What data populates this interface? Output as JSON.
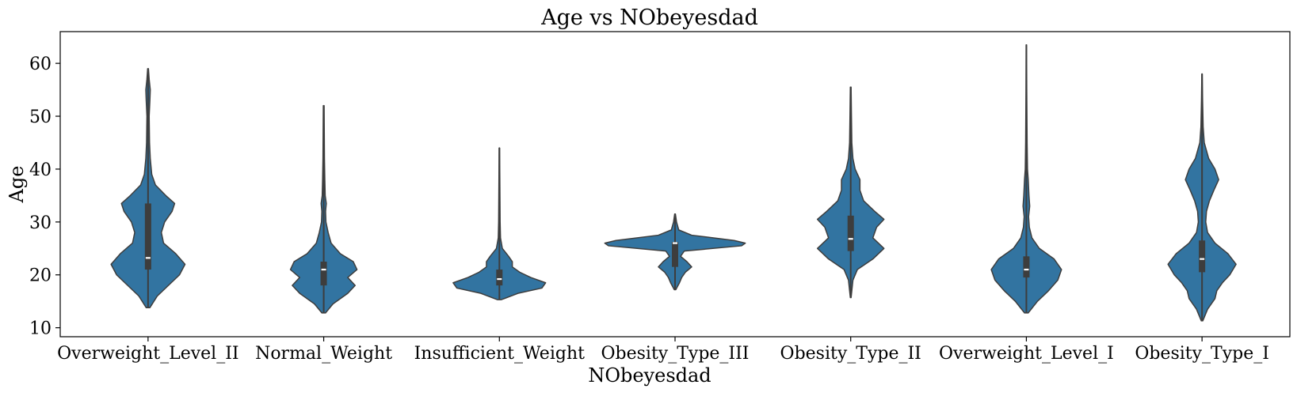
{
  "chart_data": {
    "type": "violin",
    "title": "Age vs NObeyesdad",
    "xlabel": "NObeyesdad",
    "ylabel": "Age",
    "ylim": [
      8.3,
      66
    ],
    "yticks": [
      10,
      20,
      30,
      40,
      50,
      60
    ],
    "grid": false,
    "legend": "none",
    "color": "#3274a1",
    "edge_color": "#3d3d3d",
    "categories": [
      "Overweight_Level_II",
      "Normal_Weight",
      "Insufficient_Weight",
      "Obesity_Type_III",
      "Obesity_Type_II",
      "Overweight_Level_I",
      "Obesity_Type_I"
    ],
    "series": [
      {
        "category": "Overweight_Level_II",
        "min": 13.8,
        "max": 59,
        "q1": 21,
        "median": 23.2,
        "q3": 33.5,
        "density": [
          [
            13.8,
            0.05
          ],
          [
            16,
            0.25
          ],
          [
            18,
            0.55
          ],
          [
            20,
            0.85
          ],
          [
            22,
            1.0
          ],
          [
            24,
            0.75
          ],
          [
            26,
            0.42
          ],
          [
            28,
            0.36
          ],
          [
            30,
            0.45
          ],
          [
            32,
            0.65
          ],
          [
            33.5,
            0.72
          ],
          [
            35,
            0.48
          ],
          [
            37,
            0.2
          ],
          [
            39,
            0.1
          ],
          [
            42,
            0.06
          ],
          [
            45,
            0.04
          ],
          [
            50,
            0.03
          ],
          [
            53,
            0.05
          ],
          [
            55,
            0.06
          ],
          [
            57,
            0.03
          ],
          [
            59,
            0.01
          ]
        ]
      },
      {
        "category": "Normal_Weight",
        "min": 12.8,
        "max": 52,
        "q1": 18,
        "median": 21,
        "q3": 22.5,
        "density": [
          [
            12.8,
            0.05
          ],
          [
            14.5,
            0.25
          ],
          [
            16.5,
            0.65
          ],
          [
            18,
            0.85
          ],
          [
            19.5,
            0.65
          ],
          [
            21,
            0.9
          ],
          [
            22.5,
            0.8
          ],
          [
            24,
            0.45
          ],
          [
            26,
            0.2
          ],
          [
            28,
            0.12
          ],
          [
            30,
            0.06
          ],
          [
            32,
            0.05
          ],
          [
            33.5,
            0.07
          ],
          [
            35,
            0.04
          ],
          [
            38,
            0.03
          ],
          [
            42,
            0.02
          ],
          [
            47,
            0.015
          ],
          [
            52,
            0.01
          ]
        ]
      },
      {
        "category": "Insufficient_Weight",
        "min": 15.3,
        "max": 44,
        "q1": 18,
        "median": 19.2,
        "q3": 21,
        "density": [
          [
            15.3,
            0.05
          ],
          [
            16.5,
            0.5
          ],
          [
            17.5,
            1.15
          ],
          [
            18.5,
            1.25
          ],
          [
            19.5,
            0.85
          ],
          [
            20.5,
            0.55
          ],
          [
            21.5,
            0.35
          ],
          [
            22.5,
            0.35
          ],
          [
            23.5,
            0.25
          ],
          [
            25,
            0.08
          ],
          [
            27,
            0.03
          ],
          [
            30,
            0.02
          ],
          [
            35,
            0.015
          ],
          [
            40,
            0.01
          ],
          [
            44,
            0.005
          ]
        ]
      },
      {
        "category": "Obesity_Type_III",
        "min": 17.2,
        "max": 31.5,
        "q1": 21.5,
        "median": 26,
        "q3": 26.2,
        "density": [
          [
            17.2,
            0.02
          ],
          [
            18.5,
            0.12
          ],
          [
            19.5,
            0.18
          ],
          [
            20.5,
            0.28
          ],
          [
            21.5,
            0.45
          ],
          [
            22.5,
            0.32
          ],
          [
            23.5,
            0.15
          ],
          [
            24.5,
            0.25
          ],
          [
            25.5,
            1.8
          ],
          [
            26,
            1.9
          ],
          [
            26.5,
            1.6
          ],
          [
            27.5,
            0.45
          ],
          [
            28.5,
            0.1
          ],
          [
            30,
            0.04
          ],
          [
            31.5,
            0.01
          ]
        ]
      },
      {
        "category": "Obesity_Type_II",
        "min": 15.7,
        "max": 55.5,
        "q1": 24.5,
        "median": 26.8,
        "q3": 31.2,
        "density": [
          [
            15.7,
            0.01
          ],
          [
            17,
            0.03
          ],
          [
            19,
            0.06
          ],
          [
            21,
            0.18
          ],
          [
            23,
            0.6
          ],
          [
            25,
            0.9
          ],
          [
            27,
            0.6
          ],
          [
            29,
            0.7
          ],
          [
            30.5,
            0.9
          ],
          [
            32,
            0.65
          ],
          [
            34,
            0.35
          ],
          [
            36,
            0.25
          ],
          [
            38,
            0.25
          ],
          [
            40,
            0.12
          ],
          [
            42,
            0.06
          ],
          [
            45,
            0.03
          ],
          [
            50,
            0.02
          ],
          [
            55.5,
            0.01
          ]
        ]
      },
      {
        "category": "Overweight_Level_I",
        "min": 12.8,
        "max": 63.5,
        "q1": 19.5,
        "median": 21,
        "q3": 23.5,
        "density": [
          [
            12.8,
            0.05
          ],
          [
            15,
            0.3
          ],
          [
            17,
            0.6
          ],
          [
            19,
            0.85
          ],
          [
            21,
            0.95
          ],
          [
            23,
            0.75
          ],
          [
            25,
            0.35
          ],
          [
            27,
            0.15
          ],
          [
            29,
            0.08
          ],
          [
            31,
            0.06
          ],
          [
            33,
            0.09
          ],
          [
            35,
            0.07
          ],
          [
            38,
            0.05
          ],
          [
            40,
            0.03
          ],
          [
            45,
            0.02
          ],
          [
            55,
            0.01
          ],
          [
            63.5,
            0.005
          ]
        ]
      },
      {
        "category": "Obesity_Type_I",
        "min": 11.3,
        "max": 58,
        "q1": 20.5,
        "median": 23,
        "q3": 26.5,
        "density": [
          [
            11.3,
            0.02
          ],
          [
            13.5,
            0.15
          ],
          [
            15.5,
            0.35
          ],
          [
            17,
            0.4
          ],
          [
            18.5,
            0.55
          ],
          [
            20,
            0.75
          ],
          [
            22,
            0.92
          ],
          [
            24,
            0.7
          ],
          [
            26,
            0.35
          ],
          [
            28,
            0.15
          ],
          [
            30,
            0.1
          ],
          [
            32,
            0.12
          ],
          [
            34,
            0.2
          ],
          [
            36,
            0.32
          ],
          [
            38,
            0.45
          ],
          [
            40,
            0.35
          ],
          [
            42,
            0.18
          ],
          [
            45,
            0.06
          ],
          [
            48,
            0.03
          ],
          [
            53,
            0.015
          ],
          [
            58,
            0.005
          ]
        ]
      }
    ]
  }
}
